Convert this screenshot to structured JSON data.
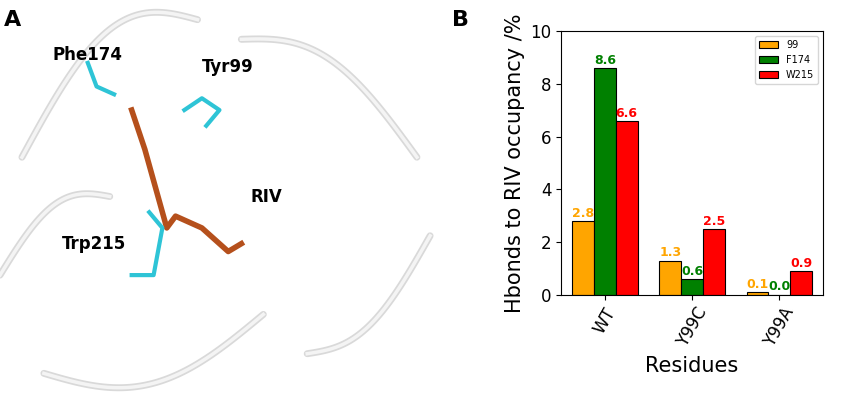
{
  "panel_a": {
    "annotations": [
      "A",
      "Phe174",
      "Tyr99",
      "RIV",
      "Trp215"
    ]
  },
  "chart_data": {
    "type": "bar",
    "annotations": [
      "B"
    ],
    "x_label": "Residues",
    "y_label": "Hbonds to RIV occupancy /%",
    "categories": [
      "WT",
      "Y99C",
      "Y99A"
    ],
    "series": [
      {
        "name": "99",
        "color": "#FFA500",
        "values": [
          2.8,
          1.3,
          0.1
        ]
      },
      {
        "name": "F174",
        "color": "#008000",
        "values": [
          8.6,
          0.6,
          0.0
        ]
      },
      {
        "name": "W215",
        "color": "#FF0000",
        "values": [
          6.6,
          2.5,
          0.9
        ]
      }
    ],
    "ylim": [
      0,
      10
    ],
    "yticks": [
      0,
      2,
      4,
      6,
      8,
      10
    ],
    "legend": "upper right",
    "data_labels": true,
    "grid": false
  }
}
